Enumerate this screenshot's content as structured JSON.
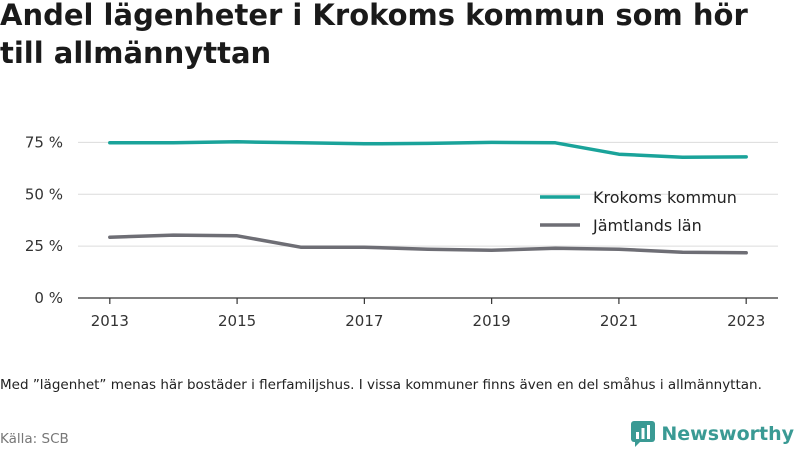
{
  "title": "Andel lägenheter i Krokoms kommun som hör till allmännyttan",
  "note": "Med ”lägenhet” menas här bostäder i flerfamiljshus. I vissa kommuner finns även en del småhus i allmännyttan.",
  "source": "Källa: SCB",
  "brand": {
    "name": "Newsworthy",
    "icon": "newsworthy-logo-icon",
    "color": "#3a9a94"
  },
  "chart_data": {
    "type": "line",
    "title": "Andel lägenheter i Krokoms kommun som hör till allmännyttan",
    "xlabel": "",
    "ylabel": "",
    "x": [
      2013,
      2014,
      2015,
      2016,
      2017,
      2018,
      2019,
      2020,
      2021,
      2022,
      2023
    ],
    "x_ticks": [
      "2013",
      "2015",
      "2017",
      "2019",
      "2021",
      "2023"
    ],
    "y_ticks": [
      "0 %",
      "25 %",
      "50 %",
      "75 %"
    ],
    "ylim": [
      0,
      80
    ],
    "grid": "horizontal",
    "legend": "right",
    "series": [
      {
        "name": "Krokoms kommun",
        "color": "#1aa39a",
        "values": [
          74.8,
          74.8,
          75.3,
          74.8,
          74.3,
          74.5,
          75.0,
          74.8,
          69.3,
          67.8,
          68.0
        ]
      },
      {
        "name": "Jämtlands län",
        "color": "#6e6e75",
        "values": [
          29.3,
          30.3,
          30.0,
          24.5,
          24.5,
          23.5,
          23.0,
          24.0,
          23.5,
          22.0,
          21.8
        ]
      }
    ]
  }
}
